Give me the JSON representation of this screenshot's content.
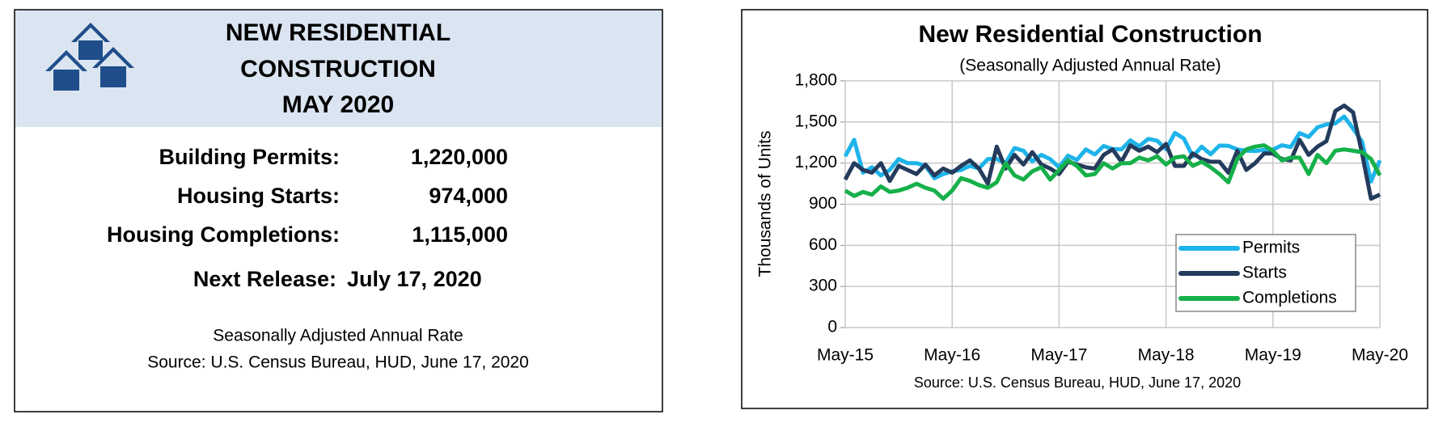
{
  "panel": {
    "title": [
      "NEW RESIDENTIAL",
      "CONSTRUCTION",
      "MAY 2020"
    ],
    "rows": [
      {
        "label": "Building Permits:",
        "value": "1,220,000"
      },
      {
        "label": "Housing Starts:",
        "value": "974,000"
      },
      {
        "label": "Housing Completions:",
        "value": "1,115,000"
      }
    ],
    "next_release": {
      "label": "Next Release:",
      "value": "July 17, 2020"
    },
    "notes": [
      "Seasonally Adjusted Annual Rate",
      "Source:  U.S. Census Bureau, HUD, June 17, 2020"
    ]
  },
  "chart_data": {
    "type": "line",
    "title": "New Residential Construction",
    "subtitle": "(Seasonally Adjusted Annual Rate)",
    "y_label": "Thousands of Units",
    "source": "Source:  U.S. Census Bureau, HUD, June 17, 2020",
    "categories": [
      "May-15",
      null,
      null,
      null,
      null,
      null,
      null,
      null,
      null,
      null,
      null,
      null,
      "May-16",
      null,
      null,
      null,
      null,
      null,
      null,
      null,
      null,
      null,
      null,
      null,
      "May-17",
      null,
      null,
      null,
      null,
      null,
      null,
      null,
      null,
      null,
      null,
      null,
      "May-18",
      null,
      null,
      null,
      null,
      null,
      null,
      null,
      null,
      null,
      null,
      null,
      "May-19",
      null,
      null,
      null,
      null,
      null,
      null,
      null,
      null,
      null,
      null,
      null,
      "May-20"
    ],
    "series": [
      {
        "name": "Permits",
        "color": "#1eb4ea",
        "values": [
          1250,
          1370,
          1130,
          1170,
          1110,
          1150,
          1230,
          1200,
          1200,
          1180,
          1090,
          1120,
          1140,
          1150,
          1180,
          1160,
          1230,
          1230,
          1200,
          1310,
          1290,
          1213,
          1260,
          1229,
          1170,
          1254,
          1223,
          1300,
          1263,
          1325,
          1303,
          1300,
          1366,
          1323,
          1377,
          1364,
          1301,
          1420,
          1380,
          1249,
          1320,
          1265,
          1328,
          1326,
          1300,
          1291,
          1288,
          1296,
          1299,
          1330,
          1317,
          1419,
          1391,
          1461,
          1482,
          1490,
          1540,
          1452,
          1356,
          1066,
          1220
        ]
      },
      {
        "name": "Starts",
        "color": "#243b5c",
        "values": [
          1080,
          1200,
          1150,
          1130,
          1200,
          1070,
          1180,
          1150,
          1120,
          1190,
          1110,
          1160,
          1130,
          1180,
          1220,
          1160,
          1050,
          1320,
          1160,
          1260,
          1190,
          1280,
          1190,
          1160,
          1120,
          1210,
          1190,
          1170,
          1160,
          1260,
          1300,
          1210,
          1330,
          1290,
          1320,
          1280,
          1340,
          1180,
          1180,
          1270,
          1230,
          1210,
          1210,
          1130,
          1290,
          1150,
          1200,
          1270,
          1270,
          1230,
          1220,
          1370,
          1260,
          1320,
          1360,
          1580,
          1620,
          1570,
          1270,
          940,
          970
        ]
      },
      {
        "name": "Completions",
        "color": "#16b04a",
        "values": [
          1000,
          960,
          990,
          970,
          1030,
          990,
          1000,
          1020,
          1050,
          1020,
          1000,
          940,
          1000,
          1090,
          1070,
          1040,
          1020,
          1060,
          1200,
          1110,
          1080,
          1140,
          1170,
          1080,
          1150,
          1220,
          1180,
          1110,
          1120,
          1200,
          1160,
          1200,
          1200,
          1240,
          1220,
          1250,
          1190,
          1240,
          1250,
          1180,
          1210,
          1170,
          1120,
          1060,
          1230,
          1300,
          1320,
          1330,
          1290,
          1220,
          1240,
          1240,
          1120,
          1260,
          1200,
          1290,
          1300,
          1290,
          1280,
          1230,
          1110
        ]
      }
    ],
    "ylim": [
      0,
      1800
    ],
    "yticks": [
      0,
      300,
      600,
      900,
      {
        "value": 1200,
        "label": "1,200"
      },
      {
        "value": 1500,
        "label": "1,500"
      },
      {
        "value": 1800,
        "label": "1,800"
      }
    ],
    "grid": true,
    "legend": "lower right"
  }
}
